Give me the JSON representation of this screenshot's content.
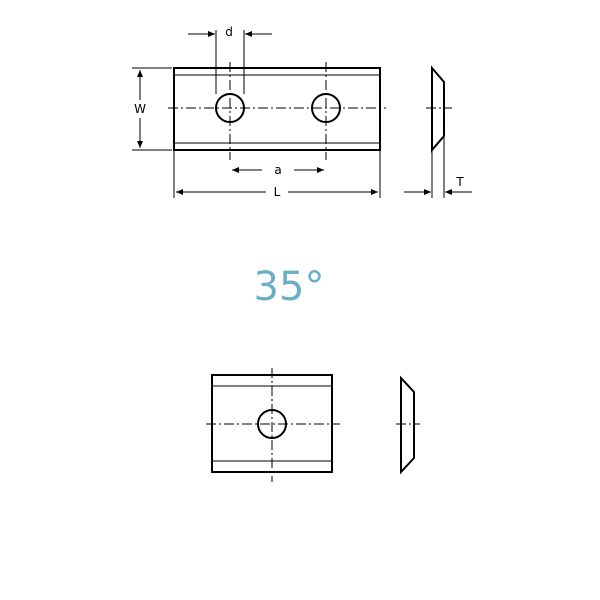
{
  "labels": {
    "d": "d",
    "w": "W",
    "a": "a",
    "l": "L",
    "t": "T"
  },
  "angle": "35°"
}
